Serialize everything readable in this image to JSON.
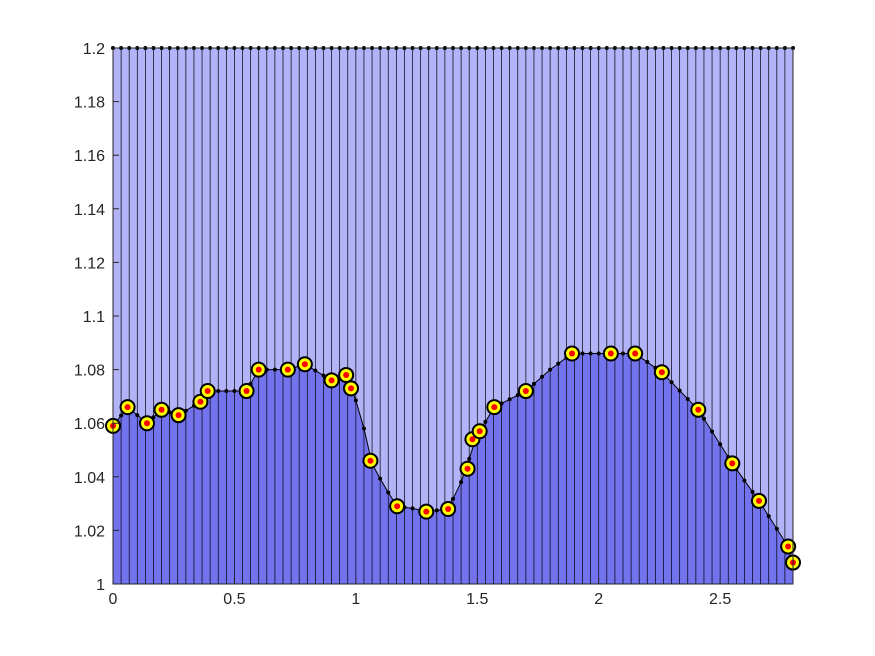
{
  "chart_data": {
    "type": "area",
    "xlim": [
      0,
      2.8
    ],
    "ylim": [
      1.0,
      1.2
    ],
    "xticks": [
      0,
      0.5,
      1,
      1.5,
      2,
      2.5
    ],
    "xtick_labels": [
      "0",
      "0.5",
      "1",
      "1.5",
      "2",
      "2.5"
    ],
    "yticks": [
      1.0,
      1.02,
      1.04,
      1.06,
      1.08,
      1.1,
      1.12,
      1.14,
      1.16,
      1.18,
      1.2
    ],
    "ytick_labels": [
      "1",
      "1.02",
      "1.04",
      "1.06",
      "1.08",
      "1.1",
      "1.12",
      "1.14",
      "1.16",
      "1.18",
      "1.2"
    ],
    "grid": false,
    "n_slices": 84,
    "top_value": 1.2,
    "profile": [
      [
        0.0,
        1.059
      ],
      [
        0.06,
        1.066
      ],
      [
        0.14,
        1.06
      ],
      [
        0.2,
        1.065
      ],
      [
        0.27,
        1.063
      ],
      [
        0.36,
        1.068
      ],
      [
        0.39,
        1.072
      ],
      [
        0.45,
        1.072
      ],
      [
        0.55,
        1.072
      ],
      [
        0.6,
        1.08
      ],
      [
        0.72,
        1.08
      ],
      [
        0.79,
        1.082
      ],
      [
        0.9,
        1.076
      ],
      [
        0.96,
        1.078
      ],
      [
        0.98,
        1.073
      ],
      [
        1.02,
        1.064
      ],
      [
        1.06,
        1.046
      ],
      [
        1.12,
        1.036
      ],
      [
        1.17,
        1.029
      ],
      [
        1.25,
        1.028
      ],
      [
        1.29,
        1.027
      ],
      [
        1.38,
        1.028
      ],
      [
        1.46,
        1.043
      ],
      [
        1.48,
        1.054
      ],
      [
        1.51,
        1.057
      ],
      [
        1.57,
        1.066
      ],
      [
        1.7,
        1.072
      ],
      [
        1.8,
        1.08
      ],
      [
        1.89,
        1.086
      ],
      [
        2.05,
        1.086
      ],
      [
        2.15,
        1.086
      ],
      [
        2.26,
        1.079
      ],
      [
        2.41,
        1.065
      ],
      [
        2.55,
        1.045
      ],
      [
        2.66,
        1.031
      ],
      [
        2.78,
        1.014
      ],
      [
        2.8,
        1.008
      ]
    ],
    "series": [
      {
        "type": "scatter",
        "marker": "yellow-circle-red-dot",
        "x": [
          0.0,
          0.06,
          0.14,
          0.2,
          0.27,
          0.36,
          0.39,
          0.55,
          0.6,
          0.72,
          0.79,
          0.9,
          0.96,
          0.98,
          1.06,
          1.17,
          1.29,
          1.38,
          1.46,
          1.48,
          1.51,
          1.57,
          1.7,
          1.89,
          2.05,
          2.15,
          2.26,
          2.41,
          2.55,
          2.66,
          2.78,
          2.8
        ],
        "y": [
          1.059,
          1.066,
          1.06,
          1.065,
          1.063,
          1.068,
          1.072,
          1.072,
          1.08,
          1.08,
          1.082,
          1.076,
          1.078,
          1.073,
          1.046,
          1.029,
          1.027,
          1.028,
          1.043,
          1.054,
          1.057,
          1.066,
          1.072,
          1.086,
          1.086,
          1.086,
          1.079,
          1.065,
          1.045,
          1.031,
          1.014,
          1.008
        ]
      }
    ],
    "colors": {
      "upper_fill": "#b3b3f8",
      "lower_fill": "#7373ee",
      "edge": "#000000",
      "marker_fill": "#ffff00",
      "marker_dot": "#ff0000"
    }
  }
}
